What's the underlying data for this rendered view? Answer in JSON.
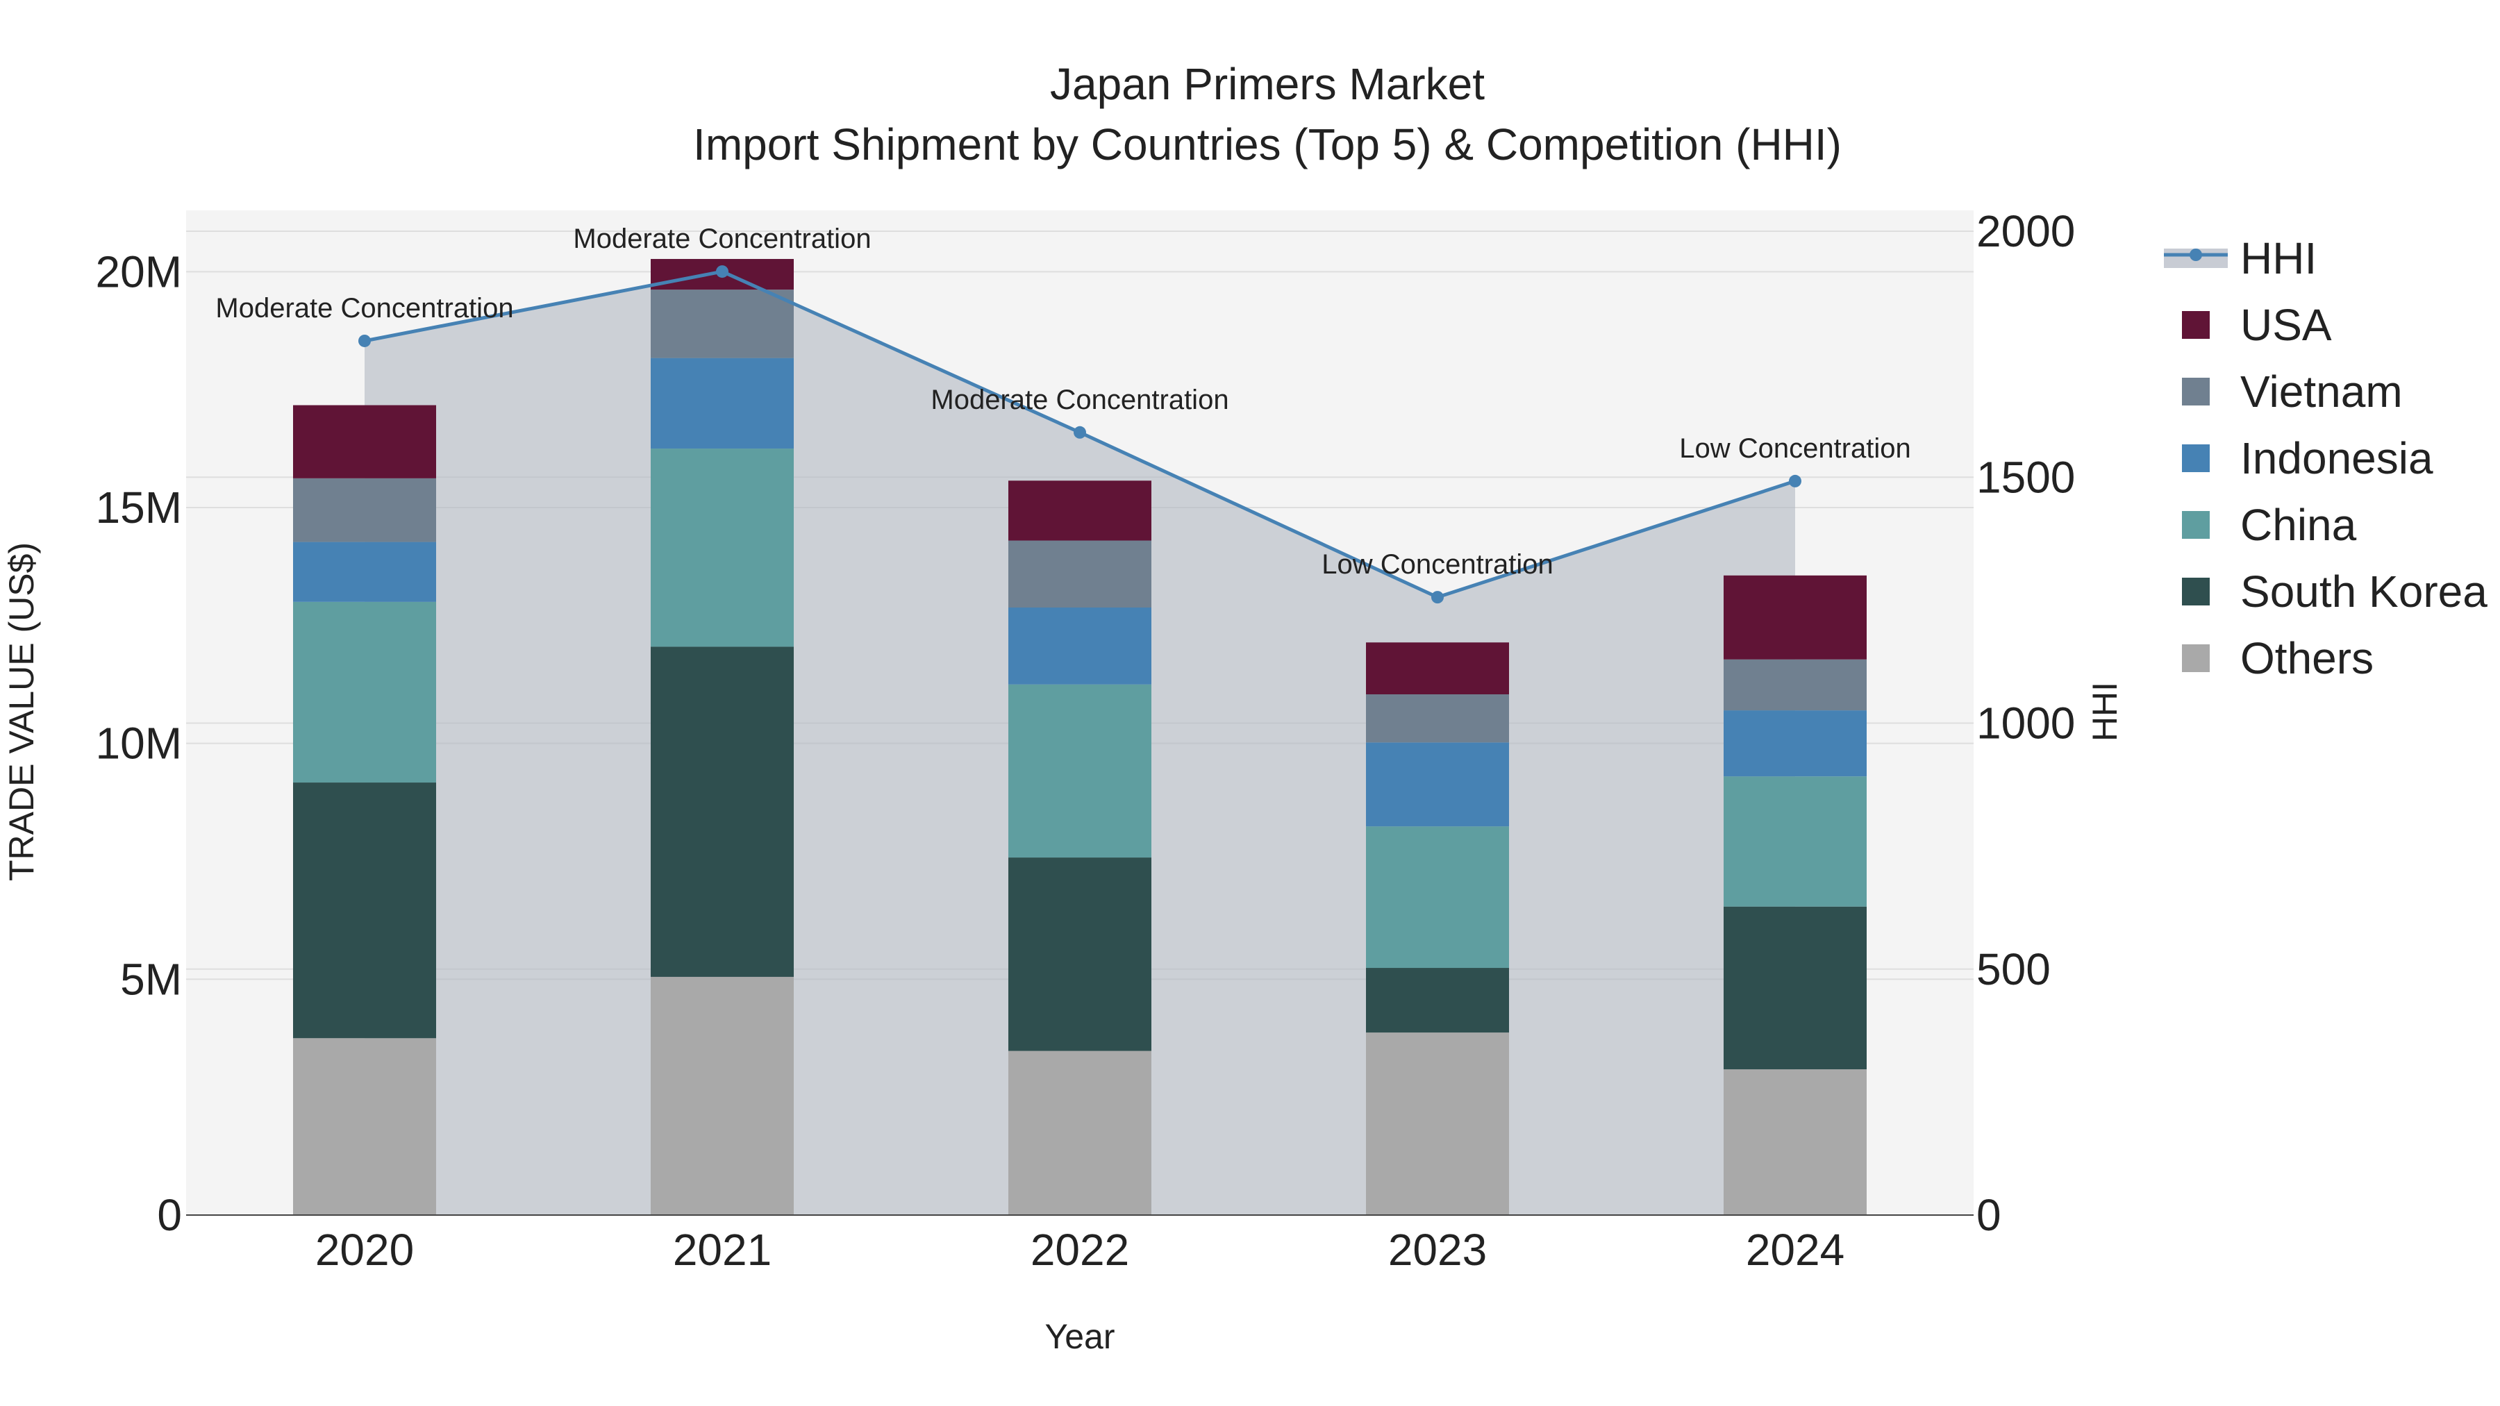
{
  "chart_data": {
    "type": "bar",
    "barmode": "stack",
    "title": "Japan Primers Market",
    "subtitle": "Import Shipment by Countries (Top 5) & Competition (HHI)",
    "xlabel": "Year",
    "ylabel": "TRADE VALUE (US$)",
    "y2label": "HHI",
    "categories": [
      "2020",
      "2021",
      "2022",
      "2023",
      "2024"
    ],
    "ylim": [
      0,
      21300000
    ],
    "y_ticks": [
      0,
      5000000,
      10000000,
      15000000,
      20000000
    ],
    "y_tick_labels": [
      "0",
      "5M",
      "10M",
      "15M",
      "20M"
    ],
    "y2lim": [
      0,
      2000
    ],
    "y2_ticks": [
      0,
      500,
      1000,
      1500,
      2000
    ],
    "y2_tick_labels": [
      "0",
      "500",
      "1000",
      "1500",
      "2000"
    ],
    "grid": true,
    "legend_position": "right",
    "series": [
      {
        "name": "Others",
        "color": "#a9a9a9",
        "values": [
          3750000,
          5050000,
          3480000,
          3870000,
          3090000
        ]
      },
      {
        "name": "South Korea",
        "color": "#2f4f4f",
        "values": [
          5420000,
          7000000,
          4100000,
          1370000,
          3450000
        ]
      },
      {
        "name": "China",
        "color": "#5f9ea0",
        "values": [
          3830000,
          4200000,
          3670000,
          3000000,
          2760000
        ]
      },
      {
        "name": "Indonesia",
        "color": "#4682b4",
        "values": [
          1270000,
          1920000,
          1630000,
          1780000,
          1400000
        ]
      },
      {
        "name": "Vietnam",
        "color": "#708090",
        "values": [
          1350000,
          1450000,
          1420000,
          1020000,
          1080000
        ]
      },
      {
        "name": "USA",
        "color": "#601436",
        "values": [
          1550000,
          650000,
          1270000,
          1100000,
          1780000
        ]
      }
    ],
    "hhi": {
      "name": "HHI",
      "color": "#4682b4",
      "values": [
        1777,
        1918,
        1591,
        1256,
        1492
      ],
      "annotations": [
        "Moderate Concentration",
        "Moderate Concentration",
        "Moderate Concentration",
        "Low Concentration",
        "Low Concentration"
      ]
    },
    "legend_order": [
      "HHI",
      "USA",
      "Vietnam",
      "Indonesia",
      "China",
      "South Korea",
      "Others"
    ]
  }
}
